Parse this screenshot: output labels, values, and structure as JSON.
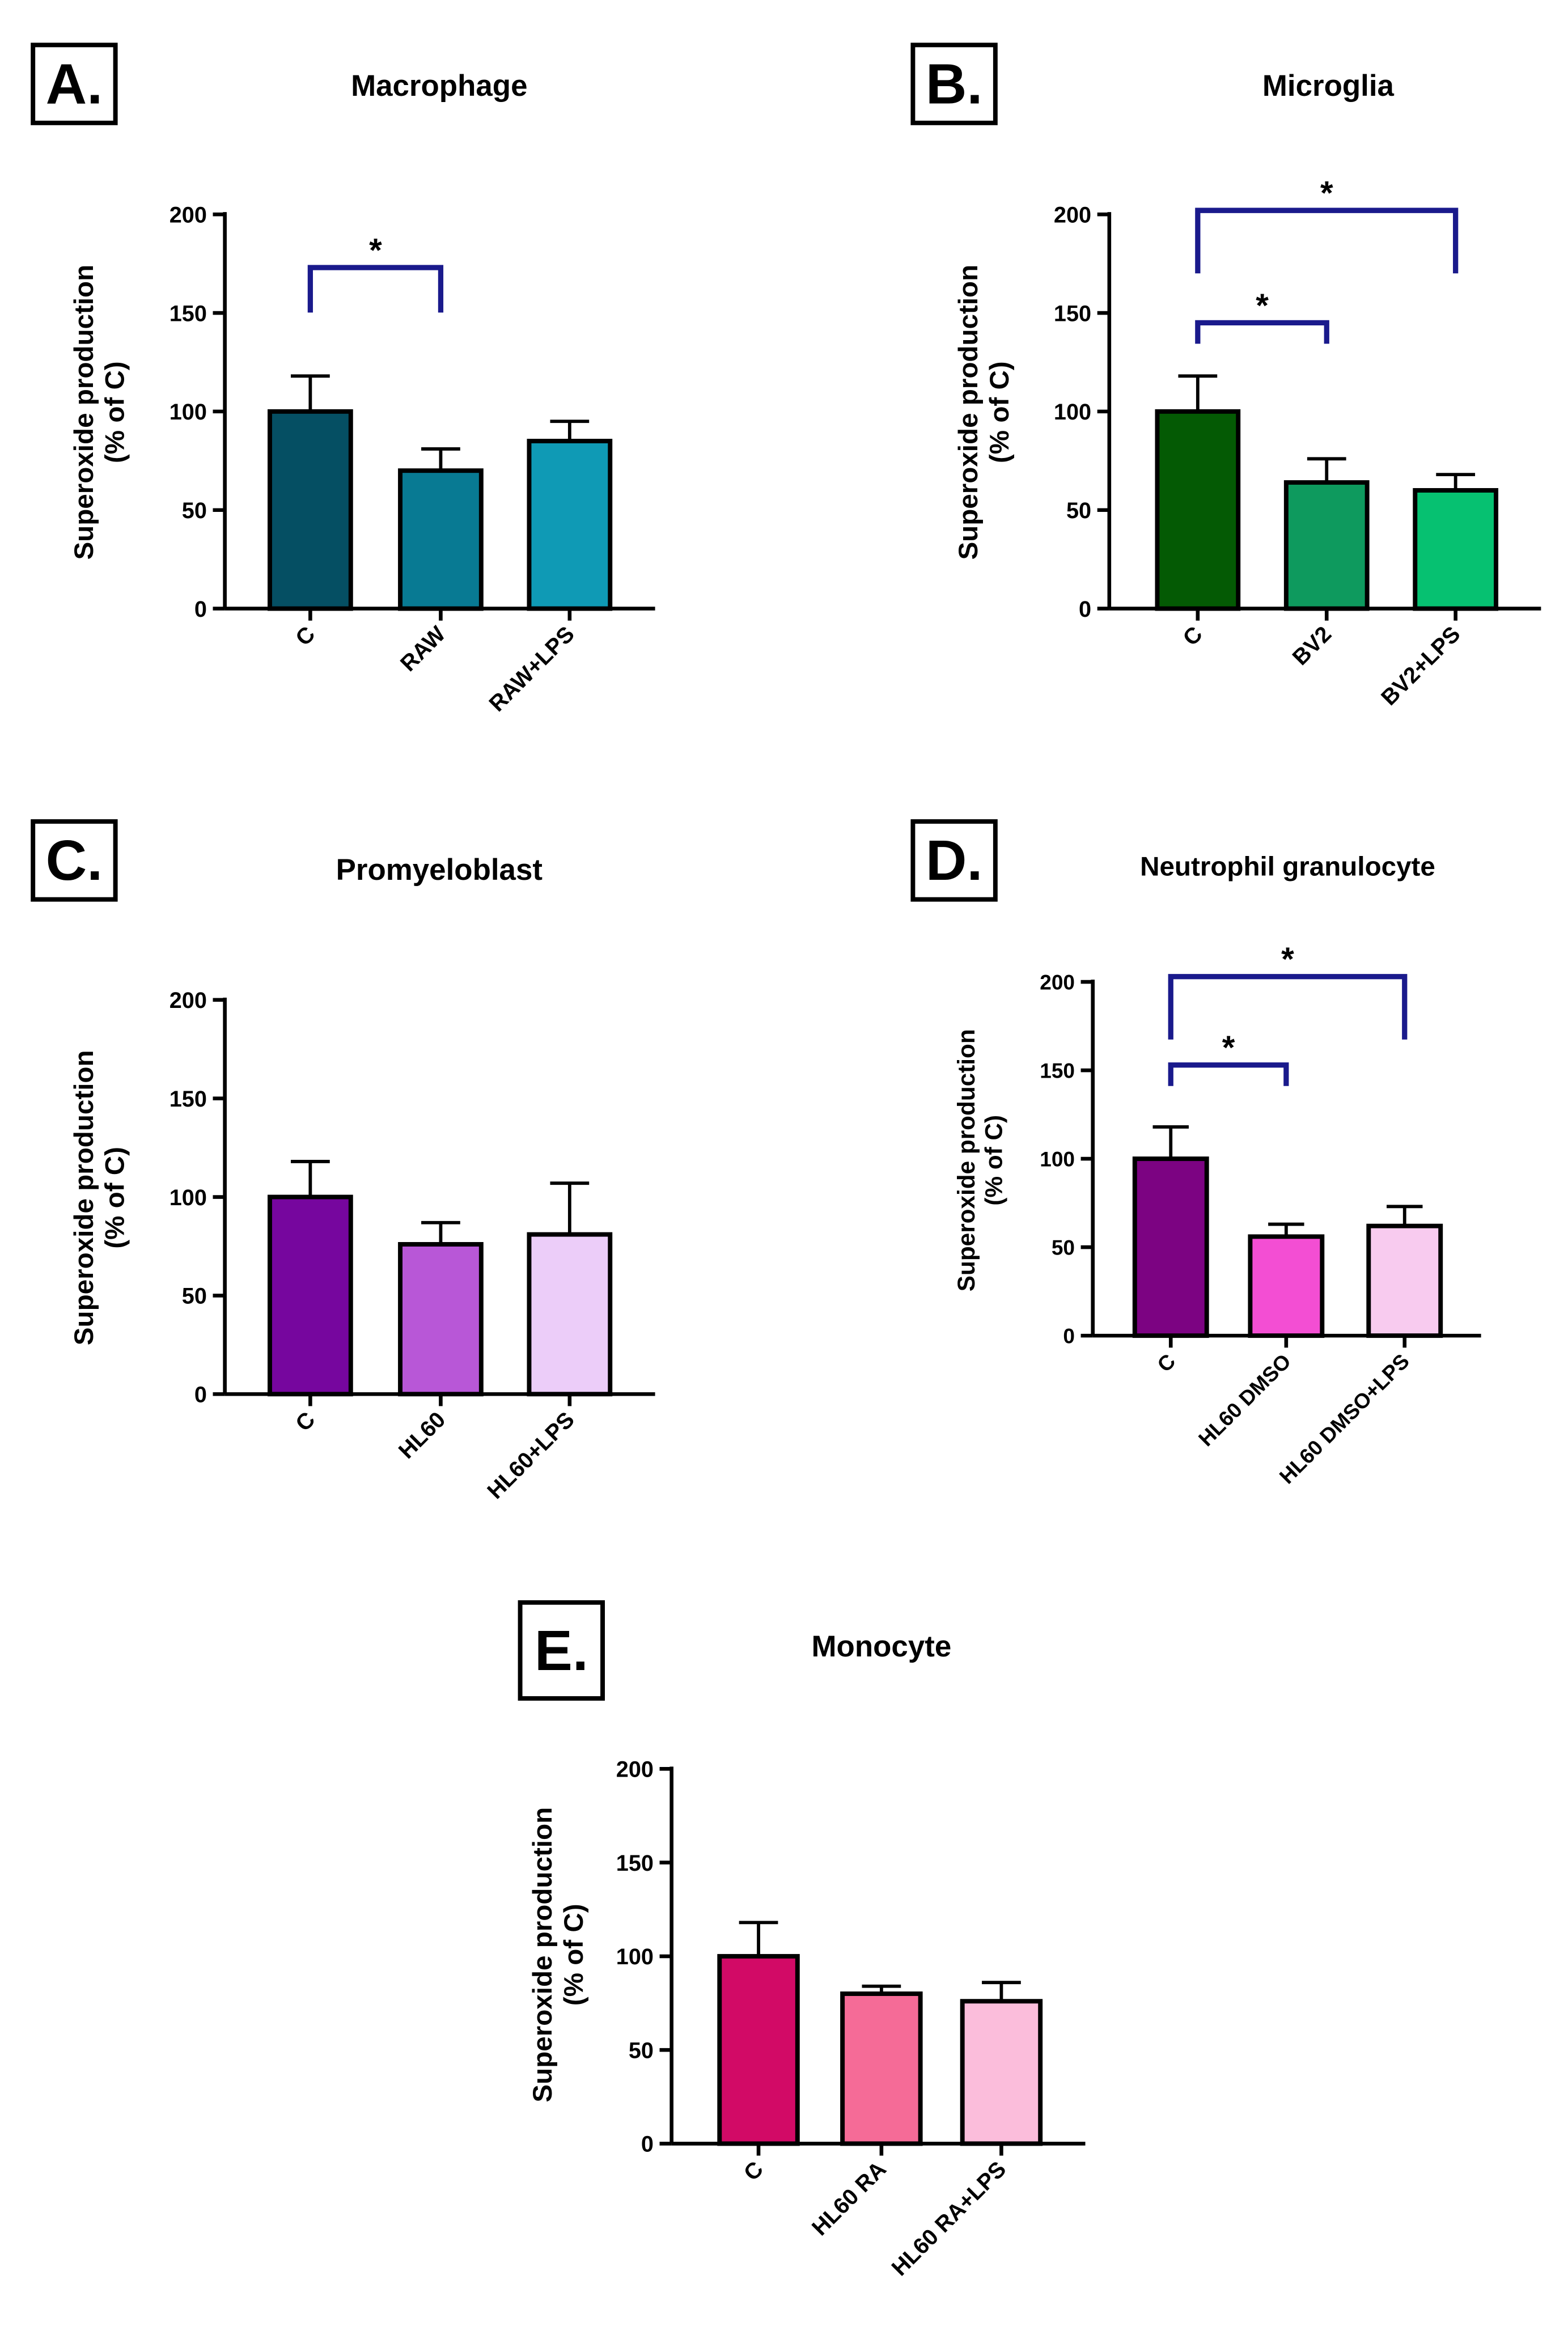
{
  "figure": {
    "axis_label_line1": "Superoxide production",
    "axis_label_line2": "(% of C)",
    "significance_color": "#1a1a8c"
  },
  "chart_data": [
    {
      "type": "bar",
      "letter": "A.",
      "title": "Macrophage",
      "ylabel": "Superoxide production (% of C)",
      "ylim": [
        0,
        200
      ],
      "yticks": [
        0,
        50,
        100,
        150,
        200
      ],
      "categories": [
        "C",
        "RAW",
        "RAW+LPS"
      ],
      "values": [
        100,
        70,
        85
      ],
      "errors": [
        18,
        11,
        10
      ],
      "colors": [
        "#054f63",
        "#087a93",
        "#0f9ab5"
      ],
      "significance": [
        {
          "from": 0,
          "to": 1,
          "label": "*",
          "level": 173
        }
      ]
    },
    {
      "type": "bar",
      "letter": "B.",
      "title": "Microglia",
      "ylabel": "Superoxide production (% of C)",
      "ylim": [
        0,
        200
      ],
      "yticks": [
        0,
        50,
        100,
        150,
        200
      ],
      "categories": [
        "C",
        "BV2",
        "BV2+LPS"
      ],
      "values": [
        100,
        64,
        60
      ],
      "errors": [
        18,
        12,
        8
      ],
      "colors": [
        "#045a04",
        "#0e9a5e",
        "#06c171"
      ],
      "significance": [
        {
          "from": 0,
          "to": 1,
          "label": "*",
          "level": 145
        },
        {
          "from": 0,
          "to": 2,
          "label": "*",
          "level": 202
        }
      ]
    },
    {
      "type": "bar",
      "letter": "C.",
      "title": "Promyeloblast",
      "ylabel": "Superoxide production (% of C)",
      "ylim": [
        0,
        200
      ],
      "yticks": [
        0,
        50,
        100,
        150,
        200
      ],
      "categories": [
        "C",
        "HL60",
        "HL60+LPS"
      ],
      "values": [
        100,
        76,
        81
      ],
      "errors": [
        18,
        11,
        26
      ],
      "colors": [
        "#76069e",
        "#b857d7",
        "#eccdf9"
      ],
      "significance": []
    },
    {
      "type": "bar",
      "letter": "D.",
      "title": "Neutrophil granulocyte",
      "ylabel": "Superoxide production (% of C)",
      "ylim": [
        0,
        200
      ],
      "yticks": [
        0,
        50,
        100,
        150,
        200
      ],
      "categories": [
        "C",
        "HL60 DMSO",
        "HL60 DMSO+LPS"
      ],
      "values": [
        100,
        56,
        62
      ],
      "errors": [
        18,
        7,
        11
      ],
      "colors": [
        "#7c0382",
        "#f34ed3",
        "#f8cbef"
      ],
      "significance": [
        {
          "from": 0,
          "to": 1,
          "label": "*",
          "level": 153
        },
        {
          "from": 0,
          "to": 2,
          "label": "*",
          "level": 203
        }
      ]
    },
    {
      "type": "bar",
      "letter": "E.",
      "title": "Monocyte",
      "ylabel": "Superoxide production (% of C)",
      "ylim": [
        0,
        200
      ],
      "yticks": [
        0,
        50,
        100,
        150,
        200
      ],
      "categories": [
        "C",
        "HL60 RA",
        "HL60 RA+LPS"
      ],
      "values": [
        100,
        80,
        76
      ],
      "errors": [
        18,
        4,
        10
      ],
      "colors": [
        "#d20a66",
        "#f56b97",
        "#fbbddb"
      ],
      "significance": []
    }
  ]
}
